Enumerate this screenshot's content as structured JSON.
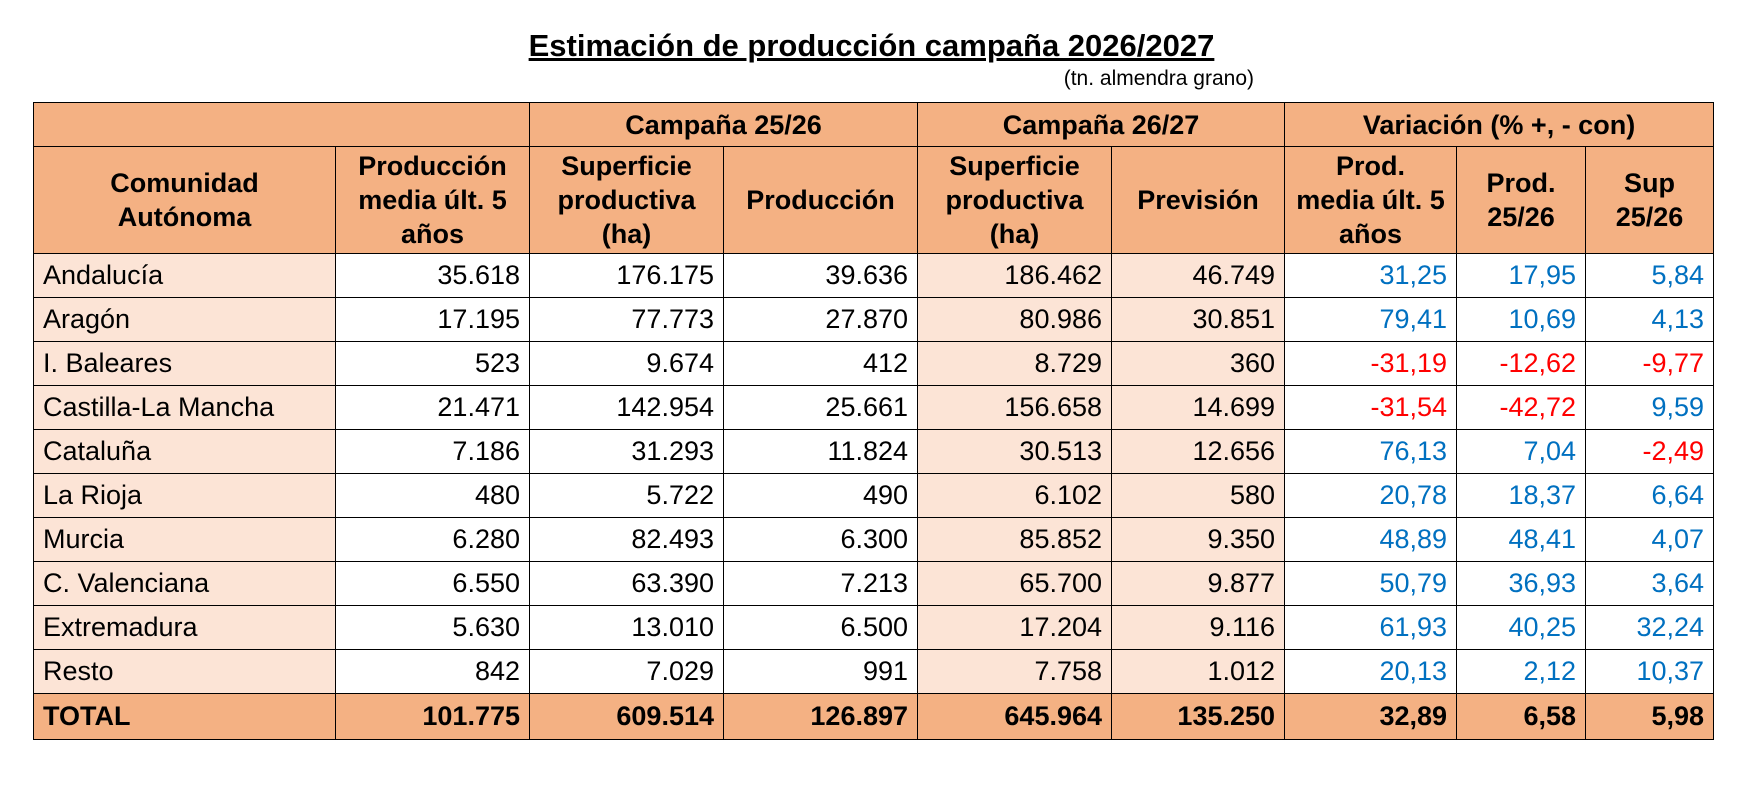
{
  "header": {
    "title": "Estimación de producción campaña 2026/2027",
    "subtitle": "(tn. almendra grano)"
  },
  "table": {
    "groups": [
      "Campaña 25/26",
      "Campaña 26/27",
      "Variación (% +, - con)"
    ],
    "columns": [
      "Comunidad Autónoma",
      "Producción media últ. 5 años",
      "Superficie productiva (ha)",
      "Producción",
      "Superficie productiva (ha)",
      "Previsión",
      "Prod. media últ. 5 años",
      "Prod. 25/26",
      "Sup 25/26"
    ],
    "rows": [
      [
        "Andalucía",
        "35.618",
        "176.175",
        "39.636",
        "186.462",
        "46.749",
        "31,25",
        "17,95",
        "5,84"
      ],
      [
        "Aragón",
        "17.195",
        "77.773",
        "27.870",
        "80.986",
        "30.851",
        "79,41",
        "10,69",
        "4,13"
      ],
      [
        "I. Baleares",
        "523",
        "9.674",
        "412",
        "8.729",
        "360",
        "-31,19",
        "-12,62",
        "-9,77"
      ],
      [
        "Castilla-La Mancha",
        "21.471",
        "142.954",
        "25.661",
        "156.658",
        "14.699",
        "-31,54",
        "-42,72",
        "9,59"
      ],
      [
        "Cataluña",
        "7.186",
        "31.293",
        "11.824",
        "30.513",
        "12.656",
        "76,13",
        "7,04",
        "-2,49"
      ],
      [
        "La Rioja",
        "480",
        "5.722",
        "490",
        "6.102",
        "580",
        "20,78",
        "18,37",
        "6,64"
      ],
      [
        "Murcia",
        "6.280",
        "82.493",
        "6.300",
        "85.852",
        "9.350",
        "48,89",
        "48,41",
        "4,07"
      ],
      [
        "C. Valenciana",
        "6.550",
        "63.390",
        "7.213",
        "65.700",
        "9.877",
        "50,79",
        "36,93",
        "3,64"
      ],
      [
        "Extremadura",
        "5.630",
        "13.010",
        "6.500",
        "17.204",
        "9.116",
        "61,93",
        "40,25",
        "32,24"
      ],
      [
        "Resto",
        "842",
        "7.029",
        "991",
        "7.758",
        "1.012",
        "20,13",
        "2,12",
        "10,37"
      ]
    ],
    "total": [
      "TOTAL",
      "101.775",
      "609.514",
      "126.897",
      "645.964",
      "135.250",
      "32,89",
      "6,58",
      "5,98"
    ]
  }
}
